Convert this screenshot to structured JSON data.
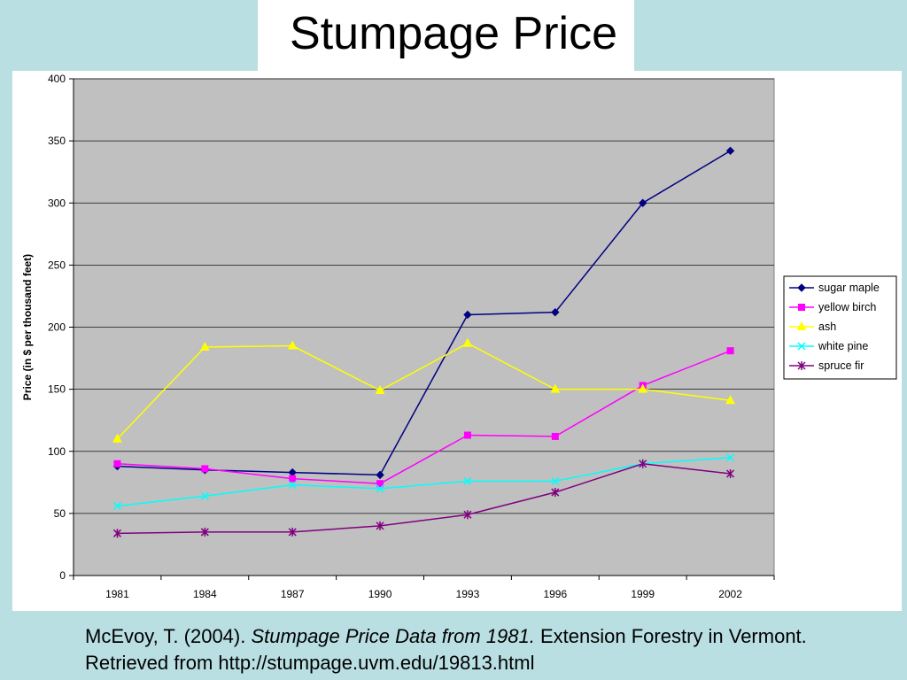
{
  "slide": {
    "title": "Stumpage Price",
    "citation": {
      "prefix": "McEvoy, T. (2004). ",
      "italic": "Stumpage Price Data from 1981.",
      "suffix": " Extension Forestry in Vermont. Retrieved from http://stumpage.uvm.edu/19813.html"
    }
  },
  "colors": {
    "plot_bg": "#c0c0c0",
    "grid": "#808080"
  },
  "chart_data": {
    "type": "line",
    "title": "",
    "xlabel": "",
    "ylabel": "Price (in $ per thousand feet)",
    "ylim": [
      0,
      400
    ],
    "yticks": [
      0,
      50,
      100,
      150,
      200,
      250,
      300,
      350,
      400
    ],
    "categories": [
      "1981",
      "1984",
      "1987",
      "1990",
      "1993",
      "1996",
      "1999",
      "2002"
    ],
    "legend_position": "right",
    "grid": true,
    "series": [
      {
        "name": "sugar maple",
        "color": "#000080",
        "marker": "diamond",
        "values": [
          88,
          85,
          83,
          81,
          210,
          212,
          300,
          342
        ]
      },
      {
        "name": "yellow birch",
        "color": "#ff00ff",
        "marker": "square",
        "values": [
          90,
          86,
          78,
          74,
          113,
          112,
          153,
          181
        ]
      },
      {
        "name": "ash",
        "color": "#ffff00",
        "marker": "triangle",
        "values": [
          110,
          184,
          185,
          149,
          187,
          150,
          150,
          141
        ]
      },
      {
        "name": "white pine",
        "color": "#00ffff",
        "marker": "x",
        "values": [
          56,
          64,
          73,
          70,
          76,
          76,
          90,
          95
        ]
      },
      {
        "name": "spruce fir",
        "color": "#800080",
        "marker": "star",
        "values": [
          34,
          35,
          35,
          40,
          49,
          67,
          90,
          82
        ]
      }
    ]
  }
}
